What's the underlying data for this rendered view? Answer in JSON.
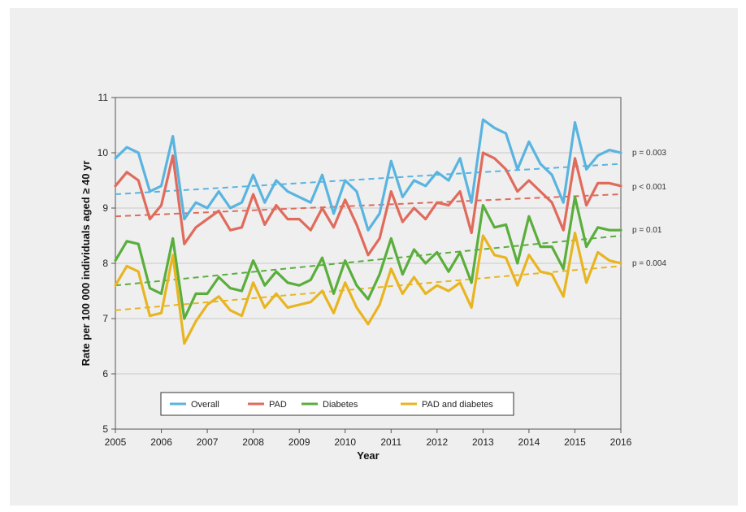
{
  "chart_data": {
    "type": "line",
    "xlabel": "Year",
    "ylabel": "Rate per 100 000 individuals aged ≥ 40 yr",
    "xlim": [
      2005,
      2016
    ],
    "ylim": [
      5,
      11
    ],
    "x_ticks": [
      "2005",
      "2006",
      "2007",
      "2008",
      "2009",
      "2010",
      "2011",
      "2012",
      "2013",
      "2014",
      "2015",
      "2016"
    ],
    "y_ticks": [
      "5",
      "6",
      "7",
      "8",
      "9",
      "10",
      "11"
    ],
    "grid": "horizontal",
    "legend_position": "bottom",
    "x": [
      2005.0,
      2005.25,
      2005.5,
      2005.75,
      2006.0,
      2006.25,
      2006.5,
      2006.75,
      2007.0,
      2007.25,
      2007.5,
      2007.75,
      2008.0,
      2008.25,
      2008.5,
      2008.75,
      2009.0,
      2009.25,
      2009.5,
      2009.75,
      2010.0,
      2010.25,
      2010.5,
      2010.75,
      2011.0,
      2011.25,
      2011.5,
      2011.75,
      2012.0,
      2012.25,
      2012.5,
      2012.75,
      2013.0,
      2013.25,
      2013.5,
      2013.75,
      2014.0,
      2014.25,
      2014.5,
      2014.75,
      2015.0,
      2015.25,
      2015.5,
      2015.75,
      2016.0
    ],
    "series": [
      {
        "name": "Overall",
        "color": "#5ab4e0",
        "values": [
          9.9,
          10.1,
          10.0,
          9.3,
          9.4,
          10.3,
          8.8,
          9.1,
          9.0,
          9.3,
          9.0,
          9.1,
          9.6,
          9.1,
          9.5,
          9.3,
          9.2,
          9.1,
          9.6,
          8.9,
          9.5,
          9.3,
          8.6,
          8.9,
          9.85,
          9.2,
          9.5,
          9.4,
          9.65,
          9.5,
          9.9,
          9.1,
          10.6,
          10.45,
          10.35,
          9.7,
          10.2,
          9.8,
          9.6,
          9.1,
          10.55,
          9.7,
          9.95,
          10.05,
          10.0
        ],
        "trend": [
          9.25,
          9.8
        ]
      },
      {
        "name": "PAD",
        "color": "#e06b5c",
        "values": [
          9.4,
          9.65,
          9.5,
          8.8,
          9.05,
          9.95,
          8.35,
          8.65,
          8.8,
          8.95,
          8.6,
          8.65,
          9.25,
          8.7,
          9.05,
          8.8,
          8.8,
          8.6,
          9.0,
          8.65,
          9.15,
          8.7,
          8.15,
          8.45,
          9.3,
          8.75,
          9.0,
          8.8,
          9.1,
          9.05,
          9.3,
          8.55,
          10.0,
          9.9,
          9.7,
          9.3,
          9.5,
          9.3,
          9.1,
          8.6,
          9.9,
          9.05,
          9.45,
          9.45,
          9.4
        ],
        "trend": [
          8.85,
          9.25
        ]
      },
      {
        "name": "Diabetes",
        "color": "#5aae3c",
        "values": [
          8.05,
          8.4,
          8.35,
          7.55,
          7.45,
          8.45,
          7.0,
          7.45,
          7.45,
          7.75,
          7.55,
          7.5,
          8.05,
          7.6,
          7.85,
          7.65,
          7.6,
          7.7,
          8.1,
          7.45,
          8.05,
          7.6,
          7.35,
          7.8,
          8.45,
          7.8,
          8.25,
          8.0,
          8.2,
          7.85,
          8.2,
          7.65,
          9.05,
          8.65,
          8.7,
          8.0,
          8.85,
          8.3,
          8.3,
          7.9,
          9.2,
          8.3,
          8.65,
          8.6,
          8.6
        ],
        "trend": [
          7.6,
          8.5
        ]
      },
      {
        "name": "PAD and diabetes",
        "color": "#e8b521",
        "values": [
          7.6,
          7.95,
          7.85,
          7.05,
          7.1,
          8.15,
          6.55,
          6.95,
          7.25,
          7.4,
          7.15,
          7.05,
          7.65,
          7.2,
          7.45,
          7.2,
          7.25,
          7.3,
          7.5,
          7.1,
          7.65,
          7.2,
          6.9,
          7.25,
          7.9,
          7.45,
          7.75,
          7.45,
          7.6,
          7.5,
          7.65,
          7.2,
          8.5,
          8.15,
          8.1,
          7.6,
          8.15,
          7.85,
          7.8,
          7.4,
          8.55,
          7.65,
          8.2,
          8.05,
          8.0
        ],
        "trend": [
          7.15,
          7.95
        ]
      }
    ],
    "annotations": [
      "p = 0.003",
      "p < 0.001",
      "p = 0.01",
      "p = 0.004"
    ]
  }
}
